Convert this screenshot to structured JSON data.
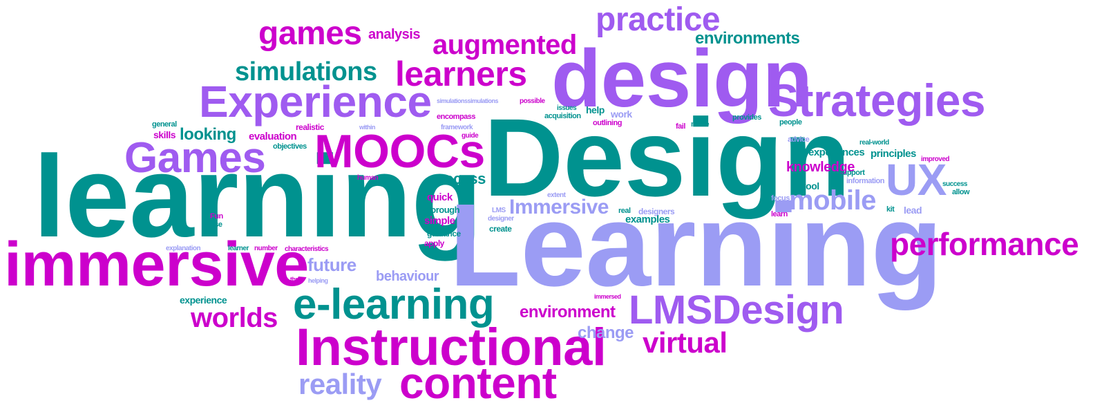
{
  "colors": {
    "teal": "#00928f",
    "magenta": "#cc00cc",
    "purple": "#9f5bf0",
    "lavender": "#9b9cf4"
  },
  "words": {
    "learning": "learning",
    "Learning": "Learning",
    "Design": "Design",
    "design": "design",
    "immersive": "immersive",
    "Experience": "Experience",
    "Strategies": "Strategies",
    "MOOCs": "MOOCs",
    "Games": "Games",
    "Instructional": "Instructional",
    "content": "content",
    "e_learning": "e-learning",
    "LMSDesign": "LMSDesign",
    "performance": "performance",
    "learners": "learners",
    "practice": "practice",
    "games": "games",
    "augmented": "augmented",
    "simulations": "simulations",
    "UX": "UX",
    "mobile": "mobile",
    "Immersive": "Immersive",
    "worlds": "worlds",
    "virtual": "virtual",
    "reality": "reality",
    "environments": "environments",
    "environment": "environment",
    "analysis": "analysis",
    "looking": "looking",
    "process": "process",
    "future": "future",
    "change": "change",
    "behaviour": "behaviour",
    "knowledge": "knowledge",
    "experiences": "experiences",
    "principles": "principles",
    "evaluation": "evaluation",
    "skills": "skills",
    "general": "general",
    "realistic": "realistic",
    "objectives": "objectives",
    "experience": "experience",
    "quick": "quick",
    "simple": "simple",
    "thorough": "thorough",
    "guidance": "guidance",
    "apply": "apply",
    "examples": "examples",
    "designers": "designers",
    "create": "create",
    "help": "help",
    "work": "work",
    "outlining": "outlining",
    "acquisition": "acquisition",
    "issues": "issues",
    "extent": "extent",
    "possible": "possible",
    "provides": "provides",
    "make": "make",
    "fail": "fail",
    "people": "people",
    "advice": "advice",
    "support": "support",
    "information": "information",
    "tool": "tool",
    "kit": "kit",
    "lead": "lead",
    "focus": "focus",
    "learn": "learn",
    "success": "success",
    "allow": "allow",
    "improved": "improved",
    "real_world": "real-world",
    "real": "real",
    "framework": "framework",
    "guide": "guide",
    "encompass": "encompass",
    "simulationssimulations": "simulationssimulations",
    "within": "within",
    "human": "human",
    "Fun": "Fun",
    "use": "use",
    "number": "number",
    "learner": "learner",
    "explanation": "explanation",
    "characteristics": "characteristics",
    "three": "three",
    "helping": "helping",
    "immersed": "immersed",
    "designer": "designer",
    "LMS": "LMS"
  }
}
